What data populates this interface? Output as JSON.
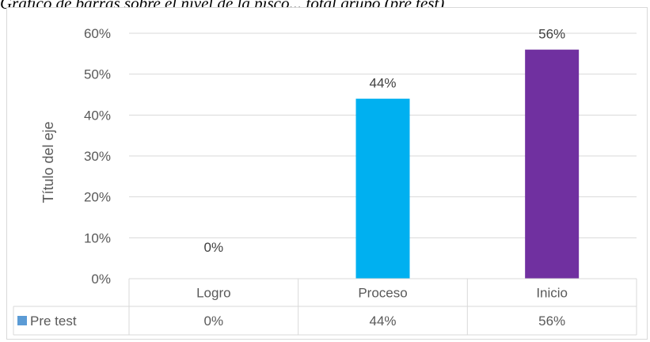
{
  "caption": "Gráfico de barras sobre el nivel de la pisco... total grupo (pre test)",
  "chart_data": {
    "type": "bar",
    "categories": [
      "Logro",
      "Proceso",
      "Inicio"
    ],
    "series": [
      {
        "name": "Pre test",
        "values": [
          0,
          44,
          56
        ],
        "value_labels": [
          "0%",
          "44%",
          "56%"
        ]
      }
    ],
    "bar_colors": [
      "#00b0f0",
      "#00b0f0",
      "#7030a0"
    ],
    "legend_color": "#5b9bd5",
    "ylabel": "Título del eje",
    "xlabel": "",
    "ylim": [
      0,
      60
    ],
    "yticks": [
      "0%",
      "10%",
      "20%",
      "30%",
      "40%",
      "50%",
      "60%"
    ],
    "grid": true,
    "data_table": true
  }
}
